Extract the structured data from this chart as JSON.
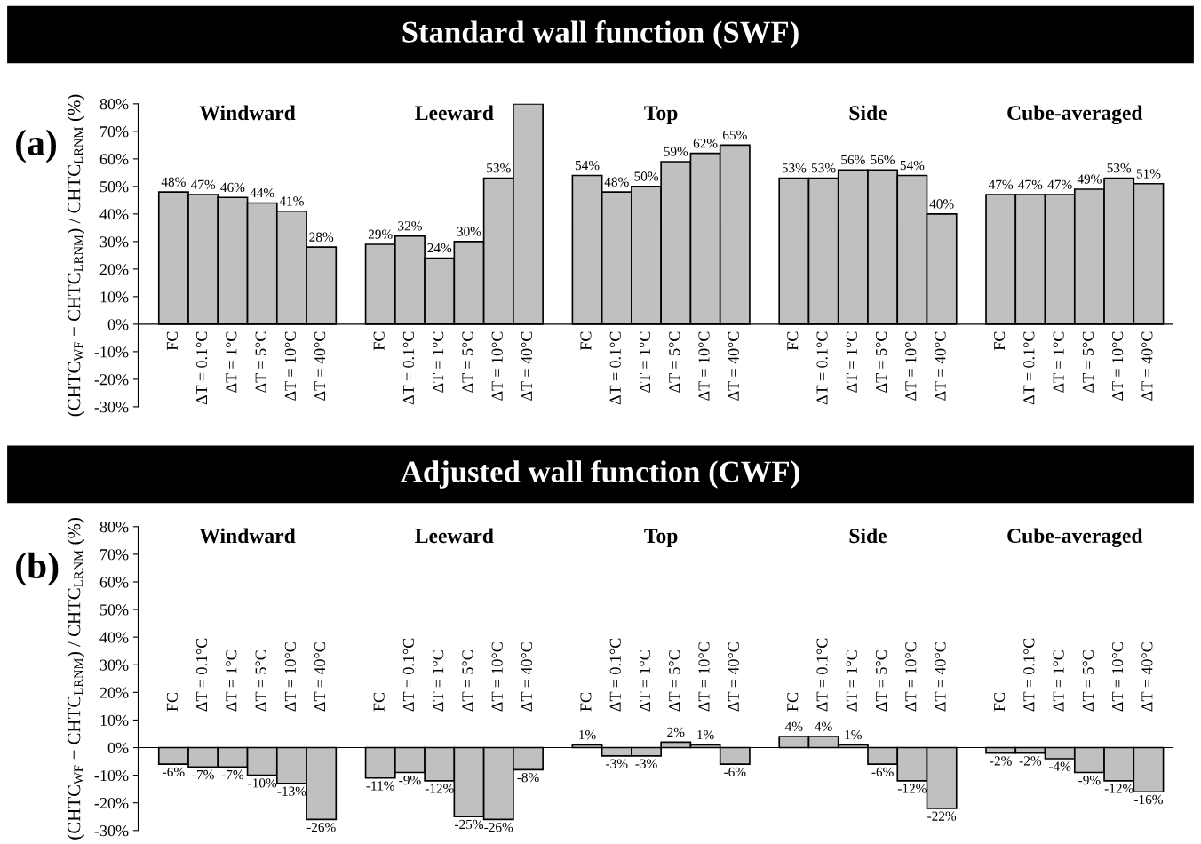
{
  "chart_data": [
    {
      "type": "bar",
      "title": "Standard wall function (SWF)",
      "ylabel": "(CHTC$_{WF}$ − CHTC$_{LRNM}$) / CHTC$_{LRNM}$ (%)",
      "annotations": [
        "(a)",
        "Windward",
        "Leeward",
        "Top",
        "Side",
        "Cube-averaged"
      ],
      "categories": [
        "FC",
        "ΔT = 0.1°C",
        "ΔT = 1°C",
        "ΔT = 5°C",
        "ΔT = 10°C",
        "ΔT = 40°C",
        null,
        "FC",
        "ΔT = 0.1°C",
        "ΔT = 1°C",
        "ΔT = 5°C",
        "ΔT = 10°C",
        "ΔT = 40°C",
        null,
        "FC",
        "ΔT = 0.1°C",
        "ΔT = 1°C",
        "ΔT = 5°C",
        "ΔT = 10°C",
        "ΔT = 40°C",
        null,
        "FC",
        "ΔT = 0.1°C",
        "ΔT = 1°C",
        "ΔT = 5°C",
        "ΔT = 10°C",
        "ΔT = 40°C",
        null,
        "FC",
        "ΔT = 0.1°C",
        "ΔT = 1°C",
        "ΔT = 5°C",
        "ΔT = 10°C",
        "ΔT = 40°C"
      ],
      "values": [
        48,
        47,
        46,
        44,
        41,
        28,
        null,
        29,
        32,
        24,
        30,
        53,
        80,
        null,
        54,
        48,
        50,
        59,
        62,
        65,
        null,
        53,
        53,
        56,
        56,
        54,
        40,
        null,
        47,
        47,
        47,
        49,
        53,
        51
      ],
      "value_labels": [
        "48%",
        "47%",
        "46%",
        "44%",
        "41%",
        "28%",
        null,
        "29%",
        "32%",
        "24%",
        "30%",
        "53%",
        null,
        null,
        "54%",
        "48%",
        "50%",
        "59%",
        "62%",
        "65%",
        null,
        "53%",
        "53%",
        "56%",
        "56%",
        "54%",
        "40%",
        null,
        "47%",
        "47%",
        "47%",
        "49%",
        "53%",
        "51%"
      ],
      "color": "#c0c0c0",
      "ylim": [
        -30,
        80
      ],
      "yticks": [
        {
          "value": -30,
          "label": "-30%"
        },
        {
          "value": -20,
          "label": "-20%"
        },
        {
          "value": -10,
          "label": "-10%"
        },
        {
          "value": 0,
          "label": "0%"
        },
        {
          "value": 10,
          "label": "10%"
        },
        {
          "value": 20,
          "label": "20%"
        },
        {
          "value": 30,
          "label": "30%"
        },
        {
          "value": 40,
          "label": "40%"
        },
        {
          "value": 50,
          "label": "50%"
        },
        {
          "value": 60,
          "label": "60%"
        },
        {
          "value": 70,
          "label": "70%"
        },
        {
          "value": 80,
          "label": "80%"
        }
      ],
      "grid": false,
      "legend": false
    },
    {
      "type": "bar",
      "title": "Adjusted wall function (CWF)",
      "ylabel": "(CHTC$_{WF}$ − CHTC$_{LRNM}$) / CHTC$_{LRNM}$ (%)",
      "annotations": [
        "(b)",
        "Windward",
        "Leeward",
        "Top",
        "Side",
        "Cube-averaged"
      ],
      "categories": [
        "FC",
        "ΔT = 0.1°C",
        "ΔT = 1°C",
        "ΔT = 5°C",
        "ΔT = 10°C",
        "ΔT = 40°C",
        null,
        "FC",
        "ΔT = 0.1°C",
        "ΔT = 1°C",
        "ΔT = 5°C",
        "ΔT = 10°C",
        "ΔT = 40°C",
        null,
        "FC",
        "ΔT = 0.1°C",
        "ΔT = 1°C",
        "ΔT = 5°C",
        "ΔT = 10°C",
        "ΔT = 40°C",
        null,
        "FC",
        "ΔT = 0.1°C",
        "ΔT = 1°C",
        "ΔT = 5°C",
        "ΔT = 10°C",
        "ΔT = 40°C",
        null,
        "FC",
        "ΔT = 0.1°C",
        "ΔT = 1°C",
        "ΔT = 5°C",
        "ΔT = 10°C",
        "ΔT = 40°C"
      ],
      "values": [
        -6,
        -7,
        -7,
        -10,
        -13,
        -26,
        null,
        -11,
        -9,
        -12,
        -25,
        -26,
        -8,
        null,
        1,
        -3,
        -3,
        2,
        1,
        -6,
        null,
        4,
        4,
        1,
        -6,
        -12,
        -22,
        null,
        -2,
        -2,
        -4,
        -9,
        -12,
        -16
      ],
      "value_labels": [
        "-6%",
        "-7%",
        "-7%",
        "-10%",
        "-13%",
        "-26%",
        null,
        "-11%",
        "-9%",
        "-12%",
        "-25%",
        "-26%",
        "-8%",
        null,
        "1%",
        "-3%",
        "-3%",
        "2%",
        "1%",
        "-6%",
        null,
        "4%",
        "4%",
        "1%",
        "-6%",
        "-12%",
        "-22%",
        null,
        "-2%",
        "-2%",
        "-4%",
        "-9%",
        "-12%",
        "-16%"
      ],
      "color": "#c0c0c0",
      "ylim": [
        -30,
        80
      ],
      "yticks": [
        {
          "value": -30,
          "label": "-30%"
        },
        {
          "value": -20,
          "label": "-20%"
        },
        {
          "value": -10,
          "label": "-10%"
        },
        {
          "value": 0,
          "label": "0%"
        },
        {
          "value": 10,
          "label": "10%"
        },
        {
          "value": 20,
          "label": "20%"
        },
        {
          "value": 30,
          "label": "30%"
        },
        {
          "value": 40,
          "label": "40%"
        },
        {
          "value": 50,
          "label": "50%"
        },
        {
          "value": 60,
          "label": "60%"
        },
        {
          "value": 70,
          "label": "70%"
        },
        {
          "value": 80,
          "label": "80%"
        }
      ],
      "grid": false,
      "legend": false
    }
  ]
}
